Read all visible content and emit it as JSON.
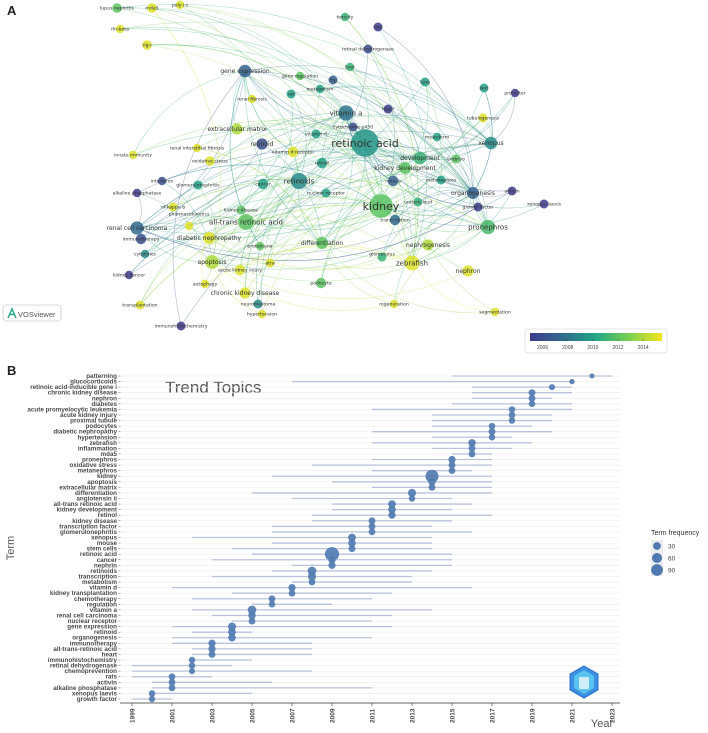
{
  "panel_a": {
    "label": "A",
    "logo_text": "VOSviewer",
    "colorbar": {
      "ticks": [
        "2006",
        "2008",
        "2010",
        "2012",
        "2014"
      ],
      "range": [
        2005,
        2015.5
      ]
    },
    "nodes": [
      {
        "label": "lupus nephritis",
        "year": 2012,
        "weight": 6
      },
      {
        "label": "mda5",
        "year": 2015,
        "weight": 6
      },
      {
        "label": "poly i:c",
        "year": 2015,
        "weight": 4
      },
      {
        "label": "ifn-beta",
        "year": 2015,
        "weight": 4
      },
      {
        "label": "rig-i",
        "year": 2015,
        "weight": 6
      },
      {
        "label": "toxicity",
        "year": 2011,
        "weight": 4
      },
      {
        "label": "rats",
        "year": 2005,
        "weight": 5
      },
      {
        "label": "retinal dehydrogenase",
        "year": 2006,
        "weight": 5
      },
      {
        "label": "liver",
        "year": 2011,
        "weight": 4
      },
      {
        "label": "gene regulation",
        "year": 2012,
        "weight": 4
      },
      {
        "label": "rbp",
        "year": 2007,
        "weight": 5
      },
      {
        "label": "metabolism",
        "year": 2010,
        "weight": 4
      },
      {
        "label": "rat",
        "year": 2010,
        "weight": 5
      },
      {
        "label": "gene expression",
        "year": 2007,
        "weight": 14
      },
      {
        "label": "renal fibrosis",
        "year": 2015,
        "weight": 4
      },
      {
        "label": "lung",
        "year": 2010,
        "weight": 5
      },
      {
        "label": "wnt",
        "year": 2010,
        "weight": 5
      },
      {
        "label": "promoter",
        "year": 2005,
        "weight": 4
      },
      {
        "label": "heart",
        "year": 2005,
        "weight": 5
      },
      {
        "label": "vitamin a",
        "year": 2008,
        "weight": 24
      },
      {
        "label": "cytochrome p450",
        "year": 2006,
        "weight": 5
      },
      {
        "label": "tubulogenesis",
        "year": 2015,
        "weight": 5
      },
      {
        "label": "extracellular matrix",
        "year": 2014,
        "weight": 10
      },
      {
        "label": "vitamin d",
        "year": 2010,
        "weight": 5
      },
      {
        "label": "retinoic acid",
        "year": 2009.5,
        "weight": 100
      },
      {
        "label": "mesoderm",
        "year": 2010,
        "weight": 4
      },
      {
        "label": "xenopus",
        "year": 2009,
        "weight": 14
      },
      {
        "label": "retinoid",
        "year": 2006,
        "weight": 10
      },
      {
        "label": "vitamin d receptor",
        "year": 2015,
        "weight": 8
      },
      {
        "label": "renal interstitial fibrosis",
        "year": 2015,
        "weight": 4
      },
      {
        "label": "innate immunity",
        "year": 2015,
        "weight": 4
      },
      {
        "label": "oxidative stress",
        "year": 2015,
        "weight": 6
      },
      {
        "label": "development",
        "year": 2011,
        "weight": 14
      },
      {
        "label": "embryo",
        "year": 2012,
        "weight": 5
      },
      {
        "label": "retinol",
        "year": 2010,
        "weight": 8
      },
      {
        "label": "kidney development",
        "year": 2012,
        "weight": 12
      },
      {
        "label": "retinoids",
        "year": 2009,
        "weight": 28
      },
      {
        "label": "cancer",
        "year": 2010,
        "weight": 8
      },
      {
        "label": "mouse",
        "year": 2007,
        "weight": 8
      },
      {
        "label": "metanephros",
        "year": 2010,
        "weight": 5
      },
      {
        "label": "interferon",
        "year": 2006,
        "weight": 4
      },
      {
        "label": "glomerulonephritis",
        "year": 2010,
        "weight": 5
      },
      {
        "label": "alkaline phosphatase",
        "year": 2005,
        "weight": 4
      },
      {
        "label": "nuclear receptor",
        "year": 2010,
        "weight": 5
      },
      {
        "label": "organogenesis",
        "year": 2007,
        "weight": 12
      },
      {
        "label": "activin",
        "year": 2005,
        "weight": 5
      },
      {
        "label": "nf-kappa b",
        "year": 2015,
        "weight": 5
      },
      {
        "label": "kidney",
        "year": 2012,
        "weight": 70
      },
      {
        "label": "ureteric bud",
        "year": 2011,
        "weight": 5
      },
      {
        "label": "growth factor",
        "year": 2005,
        "weight": 5
      },
      {
        "label": "xenopus laevis",
        "year": 2005,
        "weight": 5
      },
      {
        "label": "all-trans retinoic acid",
        "year": 2012,
        "weight": 26
      },
      {
        "label": "kidney disease",
        "year": 2012,
        "weight": 5
      },
      {
        "label": "renal cell carcinoma",
        "year": 2007.5,
        "weight": 16
      },
      {
        "label": "pharmacokinetics",
        "year": 2015,
        "weight": 4
      },
      {
        "label": "immunotherapy",
        "year": 2006,
        "weight": 8
      },
      {
        "label": "transcription",
        "year": 2007.5,
        "weight": 8
      },
      {
        "label": "diabetic nephropathy",
        "year": 2015,
        "weight": 12
      },
      {
        "label": "proteinuria",
        "year": 2012,
        "weight": 4
      },
      {
        "label": "pronephros",
        "year": 2011.5,
        "weight": 20
      },
      {
        "label": "differentiation",
        "year": 2012,
        "weight": 12
      },
      {
        "label": "nephrogenesis",
        "year": 2014,
        "weight": 10
      },
      {
        "label": "cytokines",
        "year": 2009,
        "weight": 4
      },
      {
        "label": "glomerulus",
        "year": 2011,
        "weight": 5
      },
      {
        "label": "apoptosis",
        "year": 2014,
        "weight": 18
      },
      {
        "label": "acute kidney injury",
        "year": 2015,
        "weight": 8
      },
      {
        "label": "atra",
        "year": 2015,
        "weight": 5
      },
      {
        "label": "zebrafish",
        "year": 2015,
        "weight": 22
      },
      {
        "label": "nephron",
        "year": 2015,
        "weight": 10
      },
      {
        "label": "kidney cancer",
        "year": 2005,
        "weight": 4
      },
      {
        "label": "autophagy",
        "year": 2015,
        "weight": 4
      },
      {
        "label": "podocyte",
        "year": 2012,
        "weight": 8
      },
      {
        "label": "chronic kidney disease",
        "year": 2015,
        "weight": 10
      },
      {
        "label": "transplantation",
        "year": 2015,
        "weight": 5
      },
      {
        "label": "neuroblastoma",
        "year": 2009,
        "weight": 5
      },
      {
        "label": "regeneration",
        "year": 2015,
        "weight": 4
      },
      {
        "label": "hypertension",
        "year": 2015,
        "weight": 4
      },
      {
        "label": "immunohistochemistry",
        "year": 2005,
        "weight": 5
      },
      {
        "label": "segmentation",
        "year": 2015,
        "weight": 4
      }
    ]
  },
  "panel_b": {
    "label": "B"
  },
  "chart_data": {
    "type": "scatter",
    "title": "Trend Topics",
    "xlabel": "Year",
    "ylabel": "Term",
    "xlim": [
      1998.4,
      2024.3
    ],
    "xticks": [
      1999,
      2001,
      2003,
      2005,
      2007,
      2009,
      2011,
      2013,
      2015,
      2017,
      2019,
      2021,
      2023
    ],
    "legend": {
      "title": "Term frequency",
      "entries": [
        30,
        60,
        90
      ],
      "placement": "right"
    },
    "colors": {
      "point": "#4f79b0",
      "range_line": "#b8c2dc"
    },
    "series": [
      {
        "term": "patterning",
        "q1": 2015,
        "median": 2022,
        "q3": 2023,
        "freq": 5
      },
      {
        "term": "glucocorticoids",
        "q1": 2007,
        "median": 2021,
        "q3": 2021,
        "freq": 6
      },
      {
        "term": "retinoic acid-inducible gene i",
        "q1": 2016,
        "median": 2020,
        "q3": 2021,
        "freq": 10
      },
      {
        "term": "chronic kidney disease",
        "q1": 2016,
        "median": 2019,
        "q3": 2021,
        "freq": 15
      },
      {
        "term": "nephron",
        "q1": 2016,
        "median": 2019,
        "q3": 2020,
        "freq": 15
      },
      {
        "term": "diabetes",
        "q1": 2015,
        "median": 2019,
        "q3": 2021,
        "freq": 13
      },
      {
        "term": "acute promyelocytic leukemia",
        "q1": 2011,
        "median": 2018,
        "q3": 2021,
        "freq": 12
      },
      {
        "term": "acute kidney injury",
        "q1": 2014,
        "median": 2018,
        "q3": 2020,
        "freq": 14
      },
      {
        "term": "proximal tubule",
        "q1": 2014,
        "median": 2018,
        "q3": 2020,
        "freq": 12
      },
      {
        "term": "podocytes",
        "q1": 2014,
        "median": 2017,
        "q3": 2019,
        "freq": 13
      },
      {
        "term": "diabetic nephropathy",
        "q1": 2011,
        "median": 2017,
        "q3": 2020,
        "freq": 15
      },
      {
        "term": "hypertension",
        "q1": 2014,
        "median": 2017,
        "q3": 2018,
        "freq": 12
      },
      {
        "term": "zebrafish",
        "q1": 2011,
        "median": 2016,
        "q3": 2019,
        "freq": 20
      },
      {
        "term": "inflammation",
        "q1": 2014,
        "median": 2016,
        "q3": 2018,
        "freq": 15
      },
      {
        "term": "mda5",
        "q1": 2015,
        "median": 2016,
        "q3": 2017,
        "freq": 14
      },
      {
        "term": "pronephros",
        "q1": 2011,
        "median": 2015,
        "q3": 2017,
        "freq": 18
      },
      {
        "term": "oxidative stress",
        "q1": 2008,
        "median": 2015,
        "q3": 2017,
        "freq": 15
      },
      {
        "term": "metanephros",
        "q1": 2011,
        "median": 2015,
        "q3": 2016,
        "freq": 14
      },
      {
        "term": "kidney",
        "q1": 2006,
        "median": 2014,
        "q3": 2017,
        "freq": 90
      },
      {
        "term": "apoptosis",
        "q1": 2009,
        "median": 2014,
        "q3": 2017,
        "freq": 20
      },
      {
        "term": "extracellular matrix",
        "q1": 2011,
        "median": 2014,
        "q3": 2017,
        "freq": 15
      },
      {
        "term": "differentiation",
        "q1": 2005,
        "median": 2013,
        "q3": 2017,
        "freq": 25
      },
      {
        "term": "angiotensin ii",
        "q1": 2007,
        "median": 2013,
        "q3": 2015,
        "freq": 12
      },
      {
        "term": "all-trans retinoic acid",
        "q1": 2009,
        "median": 2012,
        "q3": 2016,
        "freq": 22
      },
      {
        "term": "kidney development",
        "q1": 2009,
        "median": 2012,
        "q3": 2015,
        "freq": 20
      },
      {
        "term": "retinol",
        "q1": 2008,
        "median": 2012,
        "q3": 2017,
        "freq": 18
      },
      {
        "term": "kidney disease",
        "q1": 2008,
        "median": 2011,
        "q3": 2015,
        "freq": 15
      },
      {
        "term": "transcription factor",
        "q1": 2006,
        "median": 2011,
        "q3": 2014,
        "freq": 15
      },
      {
        "term": "glomerulonephritis",
        "q1": 2006,
        "median": 2011,
        "q3": 2016,
        "freq": 14
      },
      {
        "term": "xenopus",
        "q1": 2002,
        "median": 2010,
        "q3": 2014,
        "freq": 22
      },
      {
        "term": "mouse",
        "q1": 2006,
        "median": 2010,
        "q3": 2014,
        "freq": 20
      },
      {
        "term": "stem cells",
        "q1": 2004,
        "median": 2010,
        "q3": 2014,
        "freq": 15
      },
      {
        "term": "retinoic acid",
        "q1": 2005,
        "median": 2009,
        "q3": 2015,
        "freq": 110
      },
      {
        "term": "cancer",
        "q1": 2003,
        "median": 2009,
        "q3": 2015,
        "freq": 20
      },
      {
        "term": "nephrin",
        "q1": 2007,
        "median": 2009,
        "q3": 2015,
        "freq": 18
      },
      {
        "term": "retinoids",
        "q1": 2006,
        "median": 2008,
        "q3": 2014,
        "freq": 30
      },
      {
        "term": "transcription",
        "q1": 2003,
        "median": 2008,
        "q3": 2013,
        "freq": 25
      },
      {
        "term": "metabolism",
        "q1": 2007,
        "median": 2008,
        "q3": 2013,
        "freq": 14
      },
      {
        "term": "vitamin d",
        "q1": 2001,
        "median": 2007,
        "q3": 2016,
        "freq": 18
      },
      {
        "term": "kidney transplantation",
        "q1": 2004,
        "median": 2007,
        "q3": 2012,
        "freq": 14
      },
      {
        "term": "chemotherapy",
        "q1": 2002,
        "median": 2006,
        "q3": 2011,
        "freq": 14
      },
      {
        "term": "regulation",
        "q1": 2005,
        "median": 2006,
        "q3": 2009,
        "freq": 12
      },
      {
        "term": "vitamin a",
        "q1": 2002,
        "median": 2005,
        "q3": 2014,
        "freq": 30
      },
      {
        "term": "renal cell carcinoma",
        "q1": 2003,
        "median": 2005,
        "q3": 2012,
        "freq": 20
      },
      {
        "term": "nuclear receptor",
        "q1": 2004,
        "median": 2005,
        "q3": 2011,
        "freq": 15
      },
      {
        "term": "gene expression",
        "q1": 2001,
        "median": 2004,
        "q3": 2012,
        "freq": 25
      },
      {
        "term": "retinoid",
        "q1": 2002,
        "median": 2004,
        "q3": 2005,
        "freq": 22
      },
      {
        "term": "organogenesis",
        "q1": 2001,
        "median": 2004,
        "q3": 2011,
        "freq": 20
      },
      {
        "term": "immunotherapy",
        "q1": 2001,
        "median": 2003,
        "q3": 2008,
        "freq": 18
      },
      {
        "term": "all-trans-retinoic acid",
        "q1": 2002,
        "median": 2003,
        "q3": 2008,
        "freq": 18
      },
      {
        "term": "heart",
        "q1": 2002,
        "median": 2003,
        "q3": 2008,
        "freq": 15
      },
      {
        "term": "immunohistochemistry",
        "q1": 2002,
        "median": 2002,
        "q3": 2005,
        "freq": 12
      },
      {
        "term": "retinal dehydrogenase",
        "q1": 1999,
        "median": 2002,
        "q3": 2004,
        "freq": 12
      },
      {
        "term": "chemoprevention",
        "q1": 1999,
        "median": 2002,
        "q3": 2008,
        "freq": 10
      },
      {
        "term": "rats",
        "q1": 1999,
        "median": 2001,
        "q3": 2003,
        "freq": 14
      },
      {
        "term": "activin",
        "q1": 2000,
        "median": 2001,
        "q3": 2006,
        "freq": 14
      },
      {
        "term": "alkaline phosphatase",
        "q1": 2000,
        "median": 2001,
        "q3": 2011,
        "freq": 14
      },
      {
        "term": "xenopus laevis",
        "q1": 2000,
        "median": 2000,
        "q3": 2005,
        "freq": 12
      },
      {
        "term": "growth factor",
        "q1": 1999,
        "median": 2000,
        "q3": 2001,
        "freq": 12
      }
    ]
  }
}
